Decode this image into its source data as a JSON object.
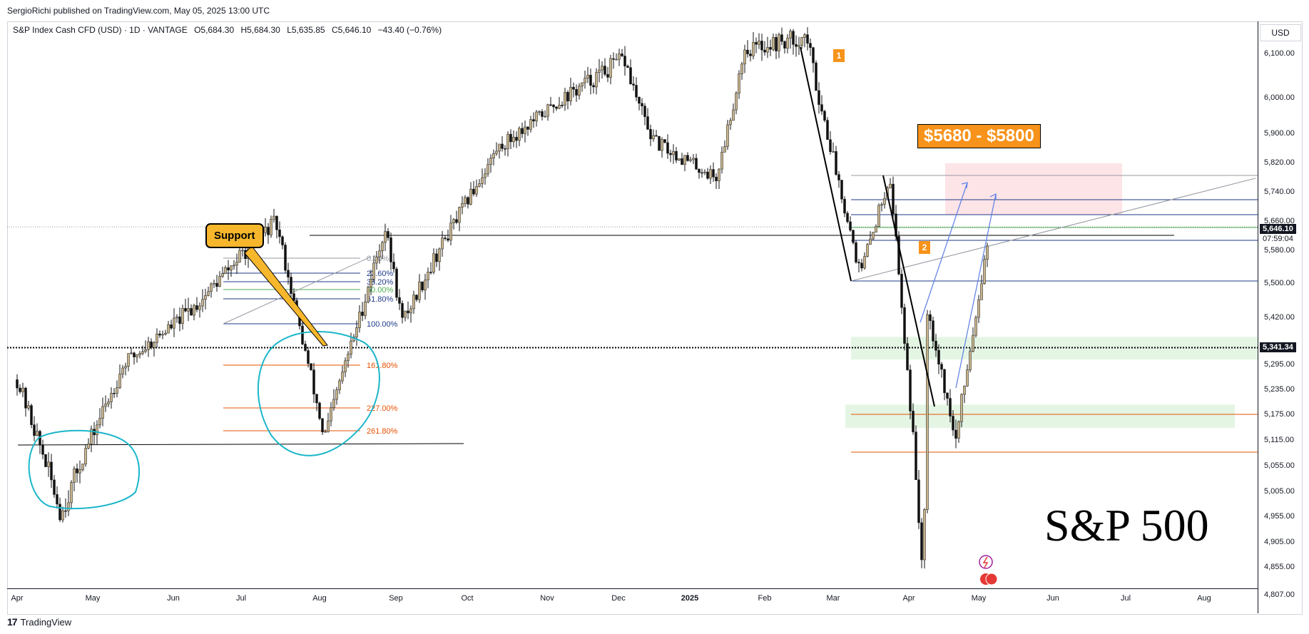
{
  "header": {
    "publisher_line": "SergioRichi published on TradingView.com, May 05, 2025 13:00 UTC",
    "symbol": "S&P Index Cash CFD (USD) · 1D · VANTAGE",
    "open": "O5,684.30",
    "high": "H5,684.30",
    "low": "L5,635.85",
    "close": "C5,646.10",
    "change": "−43.40 (−0.76%)",
    "currency": "USD"
  },
  "footer": {
    "brand": "TradingView",
    "brand_mark": "17"
  },
  "annotations": {
    "target_zone_label": "$5680 - $5800",
    "support_label": "Support",
    "chart_title": "S&P 500",
    "wave_1": "1",
    "wave_2": "2"
  },
  "badges": {
    "last_price": "5,646.10",
    "countdown": "07:59:04",
    "level_price": "5,341.34"
  },
  "fib_levels": [
    "0.00%",
    "23.60%",
    "38.20%",
    "50.00%",
    "61.80%",
    "100.00%",
    "161.80%",
    "227.00%",
    "261.80%"
  ],
  "colors": {
    "up_candle": "#c8b48a",
    "down_candle": "#111111",
    "fib_blue": "#1e3a8a",
    "fib_green": "#4caf50",
    "fib_orange": "#e65100",
    "cyan_circle": "#1bb6c9",
    "target_zone_fill": "#fde4e7",
    "support_zone_fill": "#e4f5e4",
    "arrow_blue": "#5b7fe6",
    "label_orange": "#f7931a"
  },
  "chart_data": {
    "type": "candlestick",
    "title": "S&P 500",
    "ylim": [
      4780,
      6180
    ],
    "y_ticks": [
      "6,100.00",
      "6,000.00",
      "5,900.00",
      "5,820.00",
      "5,740.00",
      "5,660.00",
      "5,580.00",
      "5,500.00",
      "5,420.00",
      "5,295.00",
      "5,235.00",
      "5,175.00",
      "5,115.00",
      "5,055.00",
      "5,005.00",
      "4,955.00",
      "4,905.00",
      "4,855.00",
      "4,807.00"
    ],
    "x_ticks": [
      "Apr",
      "May",
      "Jun",
      "Jul",
      "Aug",
      "Sep",
      "Oct",
      "Nov",
      "Dec",
      "2025",
      "Feb",
      "Mar",
      "Apr",
      "May",
      "Jun",
      "Jul",
      "Aug"
    ],
    "x_ticks_bold": [
      "2025"
    ],
    "horizontal_levels": [
      5646.1,
      5341.34,
      5680,
      5800
    ],
    "key_path": [
      {
        "date": "2024-04-01",
        "price": 5260
      },
      {
        "date": "2024-04-19",
        "price": 4960
      },
      {
        "date": "2024-05-15",
        "price": 5300
      },
      {
        "date": "2024-06-15",
        "price": 5460
      },
      {
        "date": "2024-07-16",
        "price": 5660
      },
      {
        "date": "2024-08-05",
        "price": 5120
      },
      {
        "date": "2024-08-30",
        "price": 5640
      },
      {
        "date": "2024-09-06",
        "price": 5410
      },
      {
        "date": "2024-10-15",
        "price": 5860
      },
      {
        "date": "2024-11-11",
        "price": 6000
      },
      {
        "date": "2024-12-06",
        "price": 6090
      },
      {
        "date": "2024-12-18",
        "price": 5880
      },
      {
        "date": "2025-01-13",
        "price": 5780
      },
      {
        "date": "2025-01-24",
        "price": 6110
      },
      {
        "date": "2025-02-19",
        "price": 6140
      },
      {
        "date": "2025-03-13",
        "price": 5520
      },
      {
        "date": "2025-03-25",
        "price": 5790
      },
      {
        "date": "2025-04-08",
        "price": 4810
      },
      {
        "date": "2025-04-09",
        "price": 5460
      },
      {
        "date": "2025-04-21",
        "price": 5110
      },
      {
        "date": "2025-05-05",
        "price": 5646
      }
    ]
  }
}
